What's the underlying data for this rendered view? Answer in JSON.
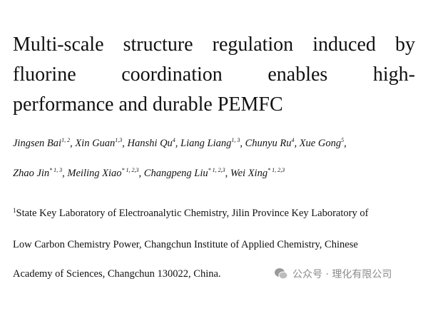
{
  "title": {
    "lines": [
      "Multi-scale structure regulation induced by",
      "fluorine coordination enables high-",
      "performance and durable PEMFC"
    ]
  },
  "authors": {
    "lines": [
      [
        {
          "name": "Jingsen Bai",
          "sup": "1, 2",
          "sep": ","
        },
        {
          "name": "Xin Guan",
          "sup": "1,3",
          "sep": ","
        },
        {
          "name": "Hanshi Qu",
          "sup": "4",
          "sep": ","
        },
        {
          "name": "Liang Liang",
          "sup": "1, 3",
          "sep": ","
        },
        {
          "name": "Chunyu Ru",
          "sup": "4",
          "sep": ","
        },
        {
          "name": "Xue Gong",
          "sup": "5",
          "sep": ","
        }
      ],
      [
        {
          "name": "Zhao Jin",
          "sup": "* 1, 3",
          "sep": ","
        },
        {
          "name": "Meiling Xiao",
          "sup": "* 1, 2,3",
          "sep": ","
        },
        {
          "name": "Changpeng Liu",
          "sup": "* 1, 2,3",
          "sep": ","
        },
        {
          "name": "Wei Xing",
          "sup": "* 1, 2,3"
        }
      ]
    ]
  },
  "affiliation": {
    "mark": "1",
    "lines": [
      "State Key Laboratory of Electroanalytic Chemistry, Jilin Province Key Laboratory of",
      "Low Carbon Chemistry Power, Changchun Institute of Applied Chemistry, Chinese",
      "Academy of Sciences, Changchun 130022, China."
    ]
  },
  "watermark": "公众号 · 理化有限公司"
}
